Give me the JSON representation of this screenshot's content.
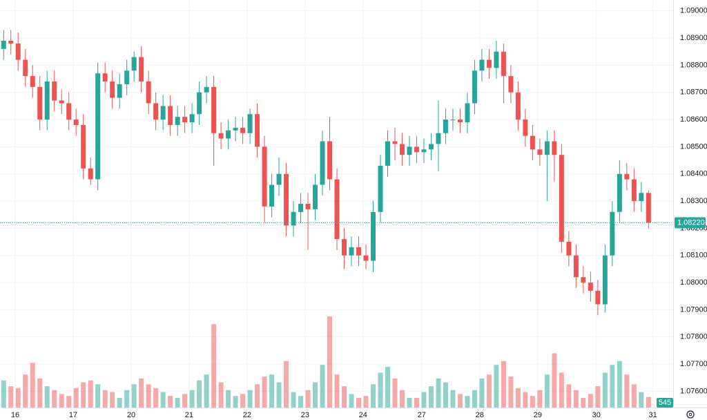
{
  "chart_data": {
    "type": "candlestick",
    "up_color": "#26a69a",
    "down_color": "#ef5350",
    "grid": true,
    "open": [
      1.0886,
      1.0889,
      1.0888,
      1.0882,
      1.0876,
      1.0872,
      1.086,
      1.0874,
      1.0867,
      1.0866,
      1.086,
      1.0858,
      1.0842,
      1.0838,
      1.0877,
      1.0874,
      1.0868,
      1.0873,
      1.0878,
      1.0883,
      1.0874,
      1.0866,
      1.086,
      1.0865,
      1.0858,
      1.0861,
      1.0859,
      1.0862,
      1.087,
      1.0872,
      1.0855,
      1.0853,
      1.0856,
      1.0857,
      1.0855,
      1.0862,
      1.085,
      1.0828,
      1.0836,
      1.084,
      1.0821,
      1.0826,
      1.0829,
      1.0827,
      1.0836,
      1.0852,
      1.0838,
      1.0816,
      1.081,
      1.0813,
      1.081,
      1.0808,
      1.0826,
      1.0843,
      1.0852,
      1.0851,
      1.0847,
      1.085,
      1.0848,
      1.0849,
      1.0851,
      1.0855,
      1.086,
      1.086,
      1.0859,
      1.0866,
      1.0878,
      1.0882,
      1.0879,
      1.0885,
      1.0876,
      1.087,
      1.086,
      1.0854,
      1.0849,
      1.0847,
      1.0852,
      1.0847,
      1.0815,
      1.081,
      1.0802,
      1.08,
      1.0797,
      1.0792,
      1.081,
      1.0826,
      1.084,
      1.0838,
      1.083,
      1.0833
    ],
    "high": [
      1.0893,
      1.0893,
      1.0892,
      1.0886,
      1.088,
      1.0876,
      1.0878,
      1.0878,
      1.0871,
      1.087,
      1.0864,
      1.0862,
      1.0846,
      1.0881,
      1.0881,
      1.0878,
      1.0877,
      1.0882,
      1.0885,
      1.0887,
      1.0878,
      1.087,
      1.0869,
      1.0869,
      1.0865,
      1.0865,
      1.0866,
      1.0874,
      1.0876,
      1.0876,
      1.0859,
      1.086,
      1.0861,
      1.0861,
      1.0864,
      1.0866,
      1.0854,
      1.084,
      1.0846,
      1.0844,
      1.083,
      1.0833,
      1.0833,
      1.084,
      1.0856,
      1.0861,
      1.0842,
      1.082,
      1.0817,
      1.0817,
      1.0814,
      1.083,
      1.0847,
      1.0856,
      1.0857,
      1.0855,
      1.0854,
      1.0854,
      1.0853,
      1.0855,
      1.0867,
      1.0864,
      1.0864,
      1.0864,
      1.087,
      1.0882,
      1.0886,
      1.0886,
      1.0889,
      1.0888,
      1.088,
      1.0874,
      1.0864,
      1.0858,
      1.0853,
      1.0856,
      1.0856,
      1.0851,
      1.0819,
      1.0814,
      1.0806,
      1.0804,
      1.0801,
      1.0814,
      1.083,
      1.0845,
      1.0844,
      1.0842,
      1.0837,
      1.0834
    ],
    "low": [
      1.0882,
      1.0884,
      1.0878,
      1.0872,
      1.0868,
      1.0856,
      1.0856,
      1.0863,
      1.0862,
      1.0856,
      1.0854,
      1.0838,
      1.0836,
      1.0834,
      1.087,
      1.0864,
      1.0864,
      1.0869,
      1.0874,
      1.087,
      1.0862,
      1.0856,
      1.0856,
      1.0854,
      1.0854,
      1.0855,
      1.0855,
      1.0858,
      1.0866,
      1.0843,
      1.0849,
      1.0849,
      1.0852,
      1.0851,
      1.0851,
      1.0846,
      1.0822,
      1.0824,
      1.0832,
      1.0817,
      1.0817,
      1.0822,
      1.0812,
      1.0823,
      1.0832,
      1.0834,
      1.0812,
      1.0805,
      1.0806,
      1.0806,
      1.0805,
      1.0804,
      1.0822,
      1.0839,
      1.0845,
      1.0843,
      1.0843,
      1.0844,
      1.0844,
      1.0845,
      1.0841,
      1.0851,
      1.0856,
      1.0855,
      1.0855,
      1.0862,
      1.0874,
      1.0875,
      1.0875,
      1.0866,
      1.0866,
      1.0856,
      1.085,
      1.0845,
      1.0843,
      1.083,
      1.0837,
      1.0811,
      1.0806,
      1.0798,
      1.0796,
      1.0793,
      1.0788,
      1.0789,
      1.0806,
      1.0822,
      1.0834,
      1.0826,
      1.0826,
      1.082
    ],
    "close": [
      1.0889,
      1.0888,
      1.0882,
      1.0876,
      1.0872,
      1.086,
      1.0874,
      1.0867,
      1.0866,
      1.086,
      1.0858,
      1.0842,
      1.0838,
      1.0877,
      1.0874,
      1.0868,
      1.0873,
      1.0878,
      1.0883,
      1.0874,
      1.0866,
      1.086,
      1.0865,
      1.0858,
      1.0861,
      1.0859,
      1.0862,
      1.087,
      1.0872,
      1.0855,
      1.0853,
      1.0856,
      1.0857,
      1.0855,
      1.0862,
      1.085,
      1.0828,
      1.0836,
      1.084,
      1.0821,
      1.0826,
      1.0829,
      1.0827,
      1.0836,
      1.0852,
      1.0838,
      1.0816,
      1.081,
      1.0813,
      1.081,
      1.0808,
      1.0826,
      1.0843,
      1.0852,
      1.0851,
      1.0847,
      1.085,
      1.0848,
      1.0849,
      1.0851,
      1.0855,
      1.086,
      1.086,
      1.0859,
      1.0866,
      1.0878,
      1.0882,
      1.0879,
      1.0885,
      1.0876,
      1.087,
      1.086,
      1.0854,
      1.0849,
      1.0847,
      1.0852,
      1.0847,
      1.0815,
      1.081,
      1.0802,
      1.08,
      1.0797,
      1.0792,
      1.081,
      1.0826,
      1.084,
      1.0838,
      1.083,
      1.0833,
      1.0822
    ],
    "volume": [
      1400,
      1100,
      1000,
      1700,
      2300,
      1500,
      1100,
      900,
      700,
      600,
      1000,
      1300,
      1400,
      1200,
      900,
      800,
      500,
      900,
      1200,
      1500,
      1200,
      1000,
      800,
      600,
      500,
      700,
      900,
      1400,
      1700,
      4300,
      1300,
      900,
      600,
      700,
      900,
      1200,
      1600,
      1700,
      1300,
      2400,
      800,
      600,
      900,
      1300,
      2200,
      4700,
      1700,
      1100,
      700,
      500,
      600,
      1200,
      1800,
      2100,
      1500,
      900,
      500,
      500,
      800,
      1100,
      1500,
      1300,
      900,
      700,
      600,
      900,
      1500,
      1700,
      2200,
      2400,
      1600,
      1000,
      800,
      600,
      900,
      1700,
      2800,
      1800,
      1200,
      900,
      500,
      700,
      1100,
      1800,
      2200,
      2400,
      1700,
      1200,
      800,
      545
    ],
    "volume_ylim": [
      0,
      21000
    ],
    "last_label": "1.08220",
    "ylim": [
      1.0754,
      1.0904
    ],
    "yticks": [
      {
        "value": 1.09,
        "label": "1.09000"
      },
      {
        "value": 1.089,
        "label": "1.08900"
      },
      {
        "value": 1.088,
        "label": "1.08800"
      },
      {
        "value": 1.087,
        "label": "1.08700"
      },
      {
        "value": 1.086,
        "label": "1.08600"
      },
      {
        "value": 1.085,
        "label": "1.08500"
      },
      {
        "value": 1.084,
        "label": "1.08400"
      },
      {
        "value": 1.083,
        "label": "1.08300"
      },
      {
        "value": 1.082,
        "label": "1.08200"
      },
      {
        "value": 1.081,
        "label": "1.08100"
      },
      {
        "value": 1.08,
        "label": "1.08000"
      },
      {
        "value": 1.079,
        "label": "1.07900"
      },
      {
        "value": 1.078,
        "label": "1.07800"
      },
      {
        "value": 1.077,
        "label": "1.07700"
      },
      {
        "value": 1.076,
        "label": "1.07600"
      }
    ],
    "xlim": [
      0,
      92.9
    ],
    "xticks": [
      {
        "value": 2.1,
        "label": "16"
      },
      {
        "value": 10.1,
        "label": "17"
      },
      {
        "value": 18.1,
        "label": "20"
      },
      {
        "value": 26.1,
        "label": "21"
      },
      {
        "value": 34.1,
        "label": "22"
      },
      {
        "value": 42.1,
        "label": "23"
      },
      {
        "value": 50.1,
        "label": "24"
      },
      {
        "value": 58.2,
        "label": "27"
      },
      {
        "value": 66.2,
        "label": "28"
      },
      {
        "value": 74.2,
        "label": "29"
      },
      {
        "value": 82.3,
        "label": "30"
      },
      {
        "value": 90.1,
        "label": "31"
      }
    ]
  }
}
